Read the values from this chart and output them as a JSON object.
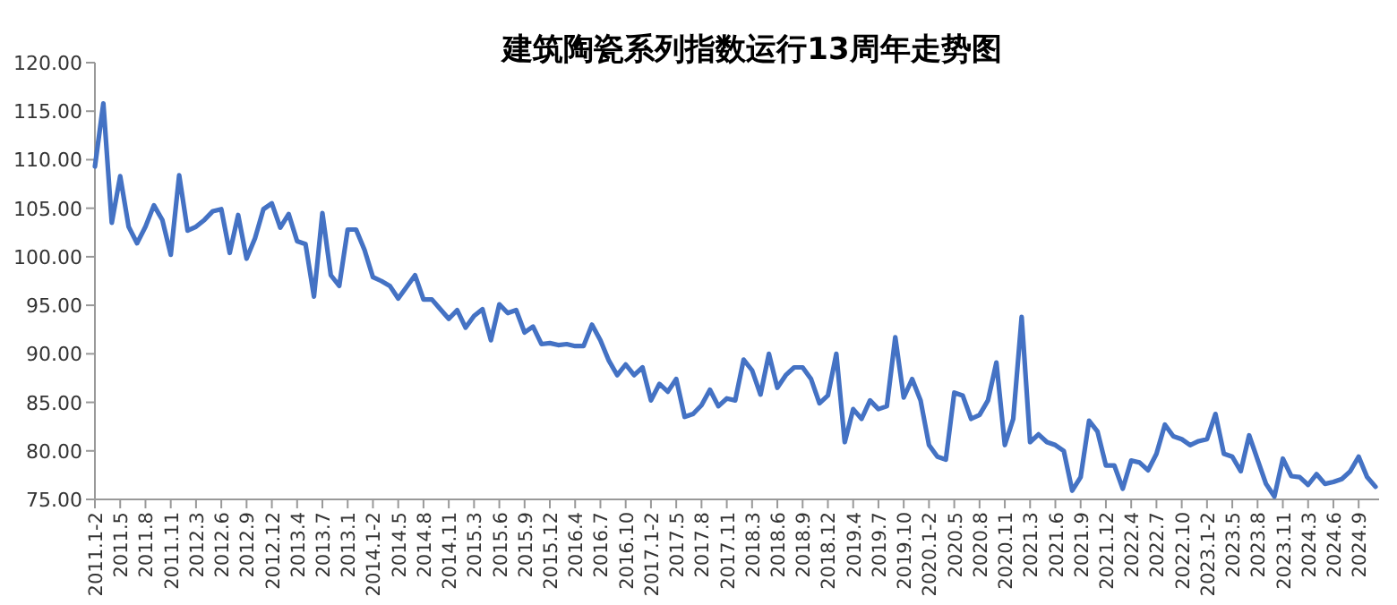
{
  "chart_data": {
    "type": "line",
    "title": "建筑陶瓷系列指数运行13周年走势图",
    "categories": [
      "2011.1-2",
      null,
      null,
      "2011.5",
      null,
      null,
      "2011.8",
      null,
      null,
      "2011.11",
      null,
      null,
      "2012.3",
      null,
      null,
      "2012.6",
      null,
      null,
      "2012.9",
      null,
      null,
      "2012.12",
      null,
      null,
      "2013.4",
      null,
      null,
      "2013.7",
      null,
      null,
      "2013.1",
      null,
      null,
      "2014.1-2",
      null,
      null,
      "2014.5",
      null,
      null,
      "2014.8",
      null,
      null,
      "2014.11",
      null,
      null,
      "2015.3",
      null,
      null,
      "2015.6",
      null,
      null,
      "2015.9",
      null,
      null,
      "2015.12",
      null,
      null,
      "2016.4",
      null,
      null,
      "2016.7",
      null,
      null,
      "2016.10",
      null,
      null,
      "2017.1-2",
      null,
      null,
      "2017.5",
      null,
      null,
      "2017.8",
      null,
      null,
      "2017.11",
      null,
      null,
      "2018.3",
      null,
      null,
      "2018.6",
      null,
      null,
      "2018.9",
      null,
      null,
      "2018.12",
      null,
      null,
      "2019.4",
      null,
      null,
      "2019.7",
      null,
      null,
      "2019.10",
      null,
      null,
      "2020.1-2",
      null,
      null,
      "2020.5",
      null,
      null,
      "2020.8",
      null,
      null,
      "2020.11",
      null,
      null,
      "2021.3",
      null,
      null,
      "2021.6",
      null,
      null,
      "2021.9",
      null,
      null,
      "2021.12",
      null,
      null,
      "2022.4",
      null,
      null,
      "2022.7",
      null,
      null,
      "2022.10",
      null,
      null,
      "2023.1-2",
      null,
      null,
      "2023.5",
      null,
      null,
      "2023.8",
      null,
      null,
      "2023.11",
      null,
      null,
      "2024.3",
      null,
      null,
      "2024.6",
      null,
      null,
      "2024.9",
      null,
      null
    ],
    "series": [
      {
        "color": "#4472c4",
        "values": [
          109.3,
          115.8,
          103.5,
          108.3,
          103.1,
          101.4,
          103.1,
          105.3,
          103.8,
          100.2,
          108.4,
          102.7,
          103.1,
          103.8,
          104.7,
          104.9,
          100.4,
          104.3,
          99.8,
          101.9,
          104.9,
          105.5,
          103.0,
          104.4,
          101.6,
          101.3,
          95.9,
          104.5,
          98.1,
          97.0,
          102.8,
          102.8,
          100.7,
          97.9,
          97.5,
          97.0,
          95.7,
          96.9,
          98.1,
          95.6,
          95.6,
          94.6,
          93.6,
          94.5,
          92.7,
          93.9,
          94.6,
          91.4,
          95.1,
          94.2,
          94.5,
          92.2,
          92.8,
          91.0,
          91.1,
          90.9,
          91.0,
          90.8,
          90.8,
          93.0,
          91.4,
          89.3,
          87.8,
          88.9,
          87.8,
          88.6,
          85.2,
          86.9,
          86.1,
          87.4,
          83.5,
          83.8,
          84.7,
          86.3,
          84.6,
          85.4,
          85.2,
          89.4,
          88.3,
          85.8,
          90.0,
          86.5,
          87.8,
          88.6,
          88.6,
          87.4,
          84.9,
          85.7,
          90.0,
          80.9,
          84.3,
          83.3,
          85.2,
          84.3,
          84.6,
          91.7,
          85.5,
          87.4,
          85.2,
          80.6,
          79.4,
          79.1,
          86.0,
          85.7,
          83.3,
          83.7,
          85.2,
          89.1,
          80.6,
          83.3,
          93.8,
          80.9,
          81.7,
          80.9,
          80.6,
          80.0,
          75.9,
          77.3,
          83.1,
          82.0,
          78.5,
          78.5,
          76.1,
          79.0,
          78.8,
          78.0,
          79.7,
          82.7,
          81.5,
          81.2,
          80.6,
          81.0,
          81.2,
          83.8,
          79.7,
          79.4,
          77.9,
          81.6,
          79.1,
          76.6,
          75.3,
          79.2,
          77.4,
          77.3,
          76.5,
          77.6,
          76.6,
          76.8,
          77.1,
          77.9,
          79.4,
          77.3,
          76.3
        ]
      }
    ],
    "ylim": [
      75,
      120
    ],
    "yticks": [
      {
        "value": 75,
        "label": "75.00"
      },
      {
        "value": 80,
        "label": "80.00"
      },
      {
        "value": 85,
        "label": "85.00"
      },
      {
        "value": 90,
        "label": "90.00"
      },
      {
        "value": 95,
        "label": "95.00"
      },
      {
        "value": 100,
        "label": "100.00"
      },
      {
        "value": 105,
        "label": "105.00"
      },
      {
        "value": 110,
        "label": "110.00"
      },
      {
        "value": 115,
        "label": "115.00"
      },
      {
        "value": 120,
        "label": "120.00"
      }
    ],
    "marker": "none",
    "line_style": "solid",
    "grid": false
  }
}
